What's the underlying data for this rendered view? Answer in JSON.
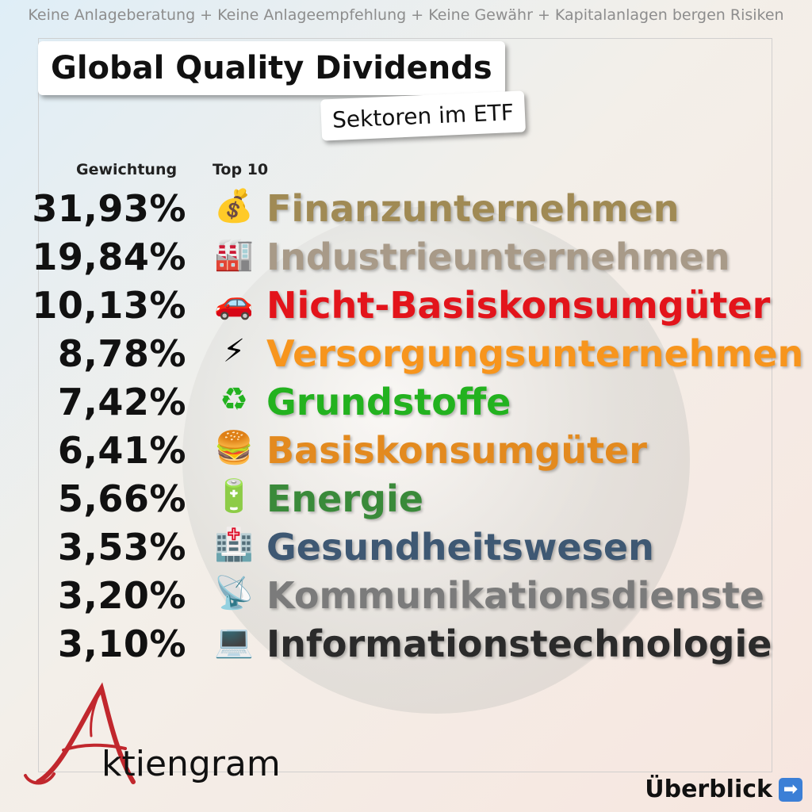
{
  "disclaimer": "Keine Anlageberatung + Keine Anlageempfehlung + Keine Gewähr + Kapitalanlagen bergen Risiken",
  "title": "Global Quality Dividends",
  "subtitle": "Sektoren im ETF",
  "headers": {
    "weight": "Gewichtung",
    "top": "Top 10"
  },
  "sectors": [
    {
      "weight": "31,93%",
      "name": "Finanzunternehmen",
      "icon": "money-bag-icon",
      "glyph": "💰",
      "color": "#a08a54"
    },
    {
      "weight": "19,84%",
      "name": "Industrieunternehmen",
      "icon": "factory-icon",
      "glyph": "🏭",
      "color": "#a89a88"
    },
    {
      "weight": "10,13%",
      "name": "Nicht-Basiskonsumgüter",
      "icon": "car-icon",
      "glyph": "🚗",
      "color": "#e3141b"
    },
    {
      "weight": "8,78%",
      "name": "Versorgungsunternehmen",
      "icon": "lightning-icon",
      "glyph": "⚡",
      "color": "#f7951d"
    },
    {
      "weight": "7,42%",
      "name": "Grundstoffe",
      "icon": "recycle-icon",
      "glyph": "♻",
      "color": "#23b21f"
    },
    {
      "weight": "6,41%",
      "name": "Basiskonsumgüter",
      "icon": "burger-icon",
      "glyph": "🍔",
      "color": "#e38a1f"
    },
    {
      "weight": "5,66%",
      "name": "Energie",
      "icon": "battery-icon",
      "glyph": "🔋",
      "color": "#3a8a3a"
    },
    {
      "weight": "3,53%",
      "name": "Gesundheitswesen",
      "icon": "hospital-icon",
      "glyph": "🏥",
      "color": "#3e5873"
    },
    {
      "weight": "3,20%",
      "name": "Kommunikationsdienste",
      "icon": "satellite-dish-icon",
      "glyph": "📡",
      "color": "#7b7b7b"
    },
    {
      "weight": "3,10%",
      "name": "Informationstechnologie",
      "icon": "laptop-icon",
      "glyph": "💻",
      "color": "#2b2b2b"
    }
  ],
  "logo": {
    "letter": "A",
    "text": "ktiengram",
    "color": "#c1272d"
  },
  "overview": {
    "label": "Überblick",
    "icon": "arrow-right-icon",
    "glyph": "➡"
  }
}
